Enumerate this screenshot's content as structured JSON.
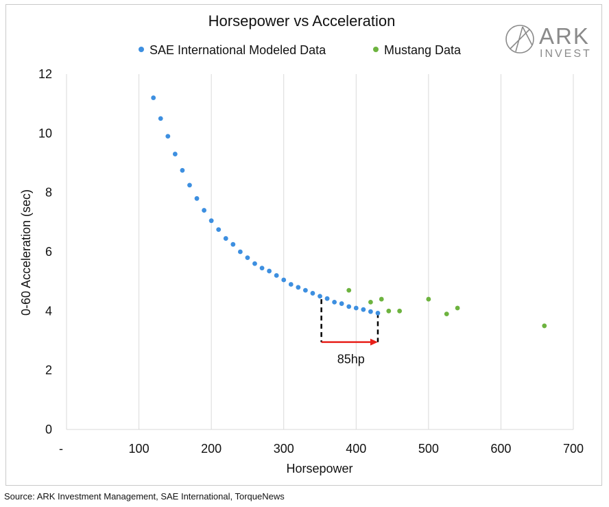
{
  "brand": {
    "logo_text": "ARK",
    "logo_subtext": "INVEST",
    "logo_color": "#8a8a8a"
  },
  "source": "Source: ARK Investment Management, SAE International, TorqueNews",
  "chart_data": {
    "type": "scatter",
    "title": "Horsepower vs Acceleration",
    "xlabel": "Horsepower",
    "ylabel": "0-60 Acceleration (sec)",
    "xlim": [
      0,
      700
    ],
    "ylim": [
      0,
      12
    ],
    "x_ticks": [
      {
        "value": 0,
        "label": "-"
      },
      {
        "value": 100,
        "label": "100"
      },
      {
        "value": 200,
        "label": "200"
      },
      {
        "value": 300,
        "label": "300"
      },
      {
        "value": 400,
        "label": "400"
      },
      {
        "value": 500,
        "label": "500"
      },
      {
        "value": 600,
        "label": "600"
      },
      {
        "value": 700,
        "label": "700"
      }
    ],
    "y_ticks": [
      {
        "value": 0,
        "label": "0"
      },
      {
        "value": 2,
        "label": "2"
      },
      {
        "value": 4,
        "label": "4"
      },
      {
        "value": 6,
        "label": "6"
      },
      {
        "value": 8,
        "label": "8"
      },
      {
        "value": 10,
        "label": "10"
      },
      {
        "value": 12,
        "label": "12"
      }
    ],
    "grid": {
      "x": true,
      "y": false
    },
    "legend": "top-center",
    "series": [
      {
        "name": "SAE International Modeled Data",
        "color": "#3d8fe0",
        "points": [
          [
            120,
            11.2
          ],
          [
            130,
            10.5
          ],
          [
            140,
            9.9
          ],
          [
            150,
            9.3
          ],
          [
            160,
            8.75
          ],
          [
            170,
            8.25
          ],
          [
            180,
            7.8
          ],
          [
            190,
            7.4
          ],
          [
            200,
            7.05
          ],
          [
            210,
            6.75
          ],
          [
            220,
            6.45
          ],
          [
            230,
            6.25
          ],
          [
            240,
            6.0
          ],
          [
            250,
            5.8
          ],
          [
            260,
            5.6
          ],
          [
            270,
            5.45
          ],
          [
            280,
            5.35
          ],
          [
            290,
            5.2
          ],
          [
            300,
            5.05
          ],
          [
            310,
            4.9
          ],
          [
            320,
            4.8
          ],
          [
            330,
            4.7
          ],
          [
            340,
            4.6
          ],
          [
            350,
            4.5
          ],
          [
            360,
            4.42
          ],
          [
            370,
            4.3
          ],
          [
            380,
            4.25
          ],
          [
            390,
            4.15
          ],
          [
            400,
            4.1
          ],
          [
            410,
            4.05
          ],
          [
            420,
            3.98
          ],
          [
            430,
            3.93
          ]
        ]
      },
      {
        "name": "Mustang Data",
        "color": "#6db33f",
        "points": [
          [
            390,
            4.7
          ],
          [
            420,
            4.3
          ],
          [
            435,
            4.4
          ],
          [
            445,
            4.0
          ],
          [
            460,
            4.0
          ],
          [
            500,
            4.4
          ],
          [
            525,
            3.9
          ],
          [
            540,
            4.1
          ],
          [
            660,
            3.5
          ]
        ]
      }
    ],
    "annotations": [
      {
        "type": "bracket-arrow",
        "label": "85hp",
        "x_from": 352,
        "x_to": 430,
        "y_top": 4.4,
        "y_arrow": 2.95,
        "dash_color": "#000000",
        "arrow_color": "#e8201a"
      }
    ]
  }
}
